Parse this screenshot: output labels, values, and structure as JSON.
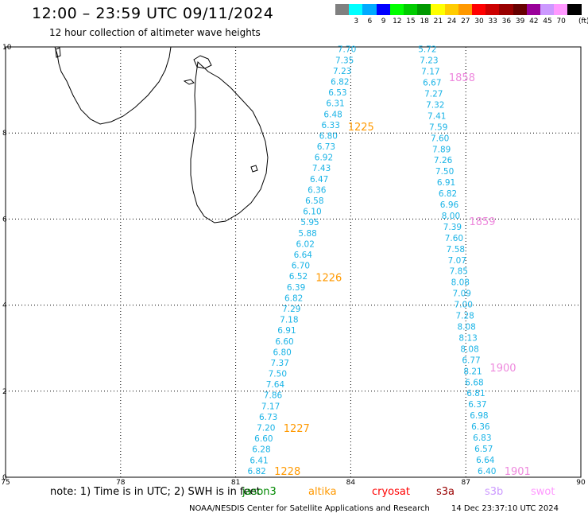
{
  "title": "12:00 – 23:59 UTC 09/11/2024",
  "subtitle": "12 hour collection of altimeter wave heights",
  "color_scale": {
    "unit": "(ft)",
    "items": [
      {
        "label": "",
        "color": "#808080"
      },
      {
        "label": "3",
        "color": "#00ffff"
      },
      {
        "label": "6",
        "color": "#00aaff"
      },
      {
        "label": "9",
        "color": "#0000ff"
      },
      {
        "label": "12",
        "color": "#00ff00"
      },
      {
        "label": "15",
        "color": "#00cc00"
      },
      {
        "label": "18",
        "color": "#009900"
      },
      {
        "label": "21",
        "color": "#ffff00"
      },
      {
        "label": "24",
        "color": "#ffcc00"
      },
      {
        "label": "27",
        "color": "#ff9900"
      },
      {
        "label": "30",
        "color": "#ff0000"
      },
      {
        "label": "33",
        "color": "#cc0000"
      },
      {
        "label": "36",
        "color": "#990000"
      },
      {
        "label": "39",
        "color": "#660000"
      },
      {
        "label": "42",
        "color": "#990099"
      },
      {
        "label": "45",
        "color": "#cc99ff"
      },
      {
        "label": "70",
        "color": "#ff99ff"
      },
      {
        "label": "",
        "color": "#000000"
      }
    ]
  },
  "axes": {
    "lon_ticks": [
      "75",
      "78",
      "81",
      "84",
      "87",
      "90"
    ],
    "lat_ticks": [
      "0",
      "2",
      "4",
      "6",
      "8",
      "10"
    ],
    "lon_range": [
      75,
      90
    ],
    "lat_range": [
      0,
      10
    ]
  },
  "tracks": [
    {
      "satellite": "altika",
      "color": "#19b3e6",
      "lon_top": 83.9,
      "lon_bottom": 81.55,
      "lat_top": 9.95,
      "lat_bottom": 0.15,
      "values": [
        "7.70",
        "7.35",
        "7.23",
        "6.82",
        "6.53",
        "6.31",
        "6.48",
        "6.33",
        "6.80",
        "6.73",
        "6.92",
        "7.43",
        "6.47",
        "6.36",
        "6.58",
        "6.10",
        "5.95",
        "5.88",
        "6.02",
        "6.64",
        "6.70",
        "6.52",
        "6.39",
        "6.82",
        "7.29",
        "7.18",
        "6.91",
        "6.60",
        "6.80",
        "7.37",
        "7.50",
        "7.64",
        "7.86",
        "7.17",
        "6.73",
        "7.20",
        "6.60",
        "6.28",
        "6.41",
        "6.82"
      ],
      "times": [
        {
          "text": "1225",
          "lat": 8.15
        },
        {
          "text": "1226",
          "lat": 4.65
        },
        {
          "text": "1227",
          "lat": 1.15
        },
        {
          "text": "1228",
          "lat": 0.15
        }
      ],
      "time_color": "#ff9900"
    },
    {
      "satellite": "swot",
      "color": "#19b3e6",
      "lon_top": 86.0,
      "lon_bottom": 87.55,
      "lat_top": 9.95,
      "lat_bottom": 0.15,
      "values": [
        "5.72",
        "7.23",
        "7.17",
        "6.67",
        "7.27",
        "7.32",
        "7.41",
        "7.59",
        "7.60",
        "7.89",
        "7.26",
        "7.50",
        "6.91",
        "6.82",
        "6.96",
        "8.00",
        "7.39",
        "7.60",
        "7.58",
        "7.07",
        "7.85",
        "8.08",
        "7.09",
        "7.00",
        "7.28",
        "8.08",
        "8.13",
        "8.08",
        "6.77",
        "8.21",
        "6.68",
        "6.81",
        "6.37",
        "6.98",
        "6.36",
        "6.83",
        "6.57",
        "6.64",
        "6.40"
      ],
      "times": [
        {
          "text": "1858",
          "lat": 9.3
        },
        {
          "text": "1859",
          "lat": 5.95
        },
        {
          "text": "1900",
          "lat": 2.55
        },
        {
          "text": "1901",
          "lat": 0.15
        }
      ],
      "time_color": "#ee88dd"
    }
  ],
  "legend": {
    "note": "note:  1) Time is in UTC;  2) SWH is in feet",
    "satellites": [
      {
        "name": "jason3",
        "color": "#008800"
      },
      {
        "name": "altika",
        "color": "#ff9900"
      },
      {
        "name": "cryosat",
        "color": "#ff0000"
      },
      {
        "name": "s3a",
        "color": "#990000"
      },
      {
        "name": "s3b",
        "color": "#cc99ff"
      },
      {
        "name": "swot",
        "color": "#ff99ff"
      }
    ]
  },
  "footer": {
    "credit": "NOAA/NESDIS Center for Satellite Applications and Research",
    "generated": "14 Dec 23:37:10 UTC 2024"
  }
}
